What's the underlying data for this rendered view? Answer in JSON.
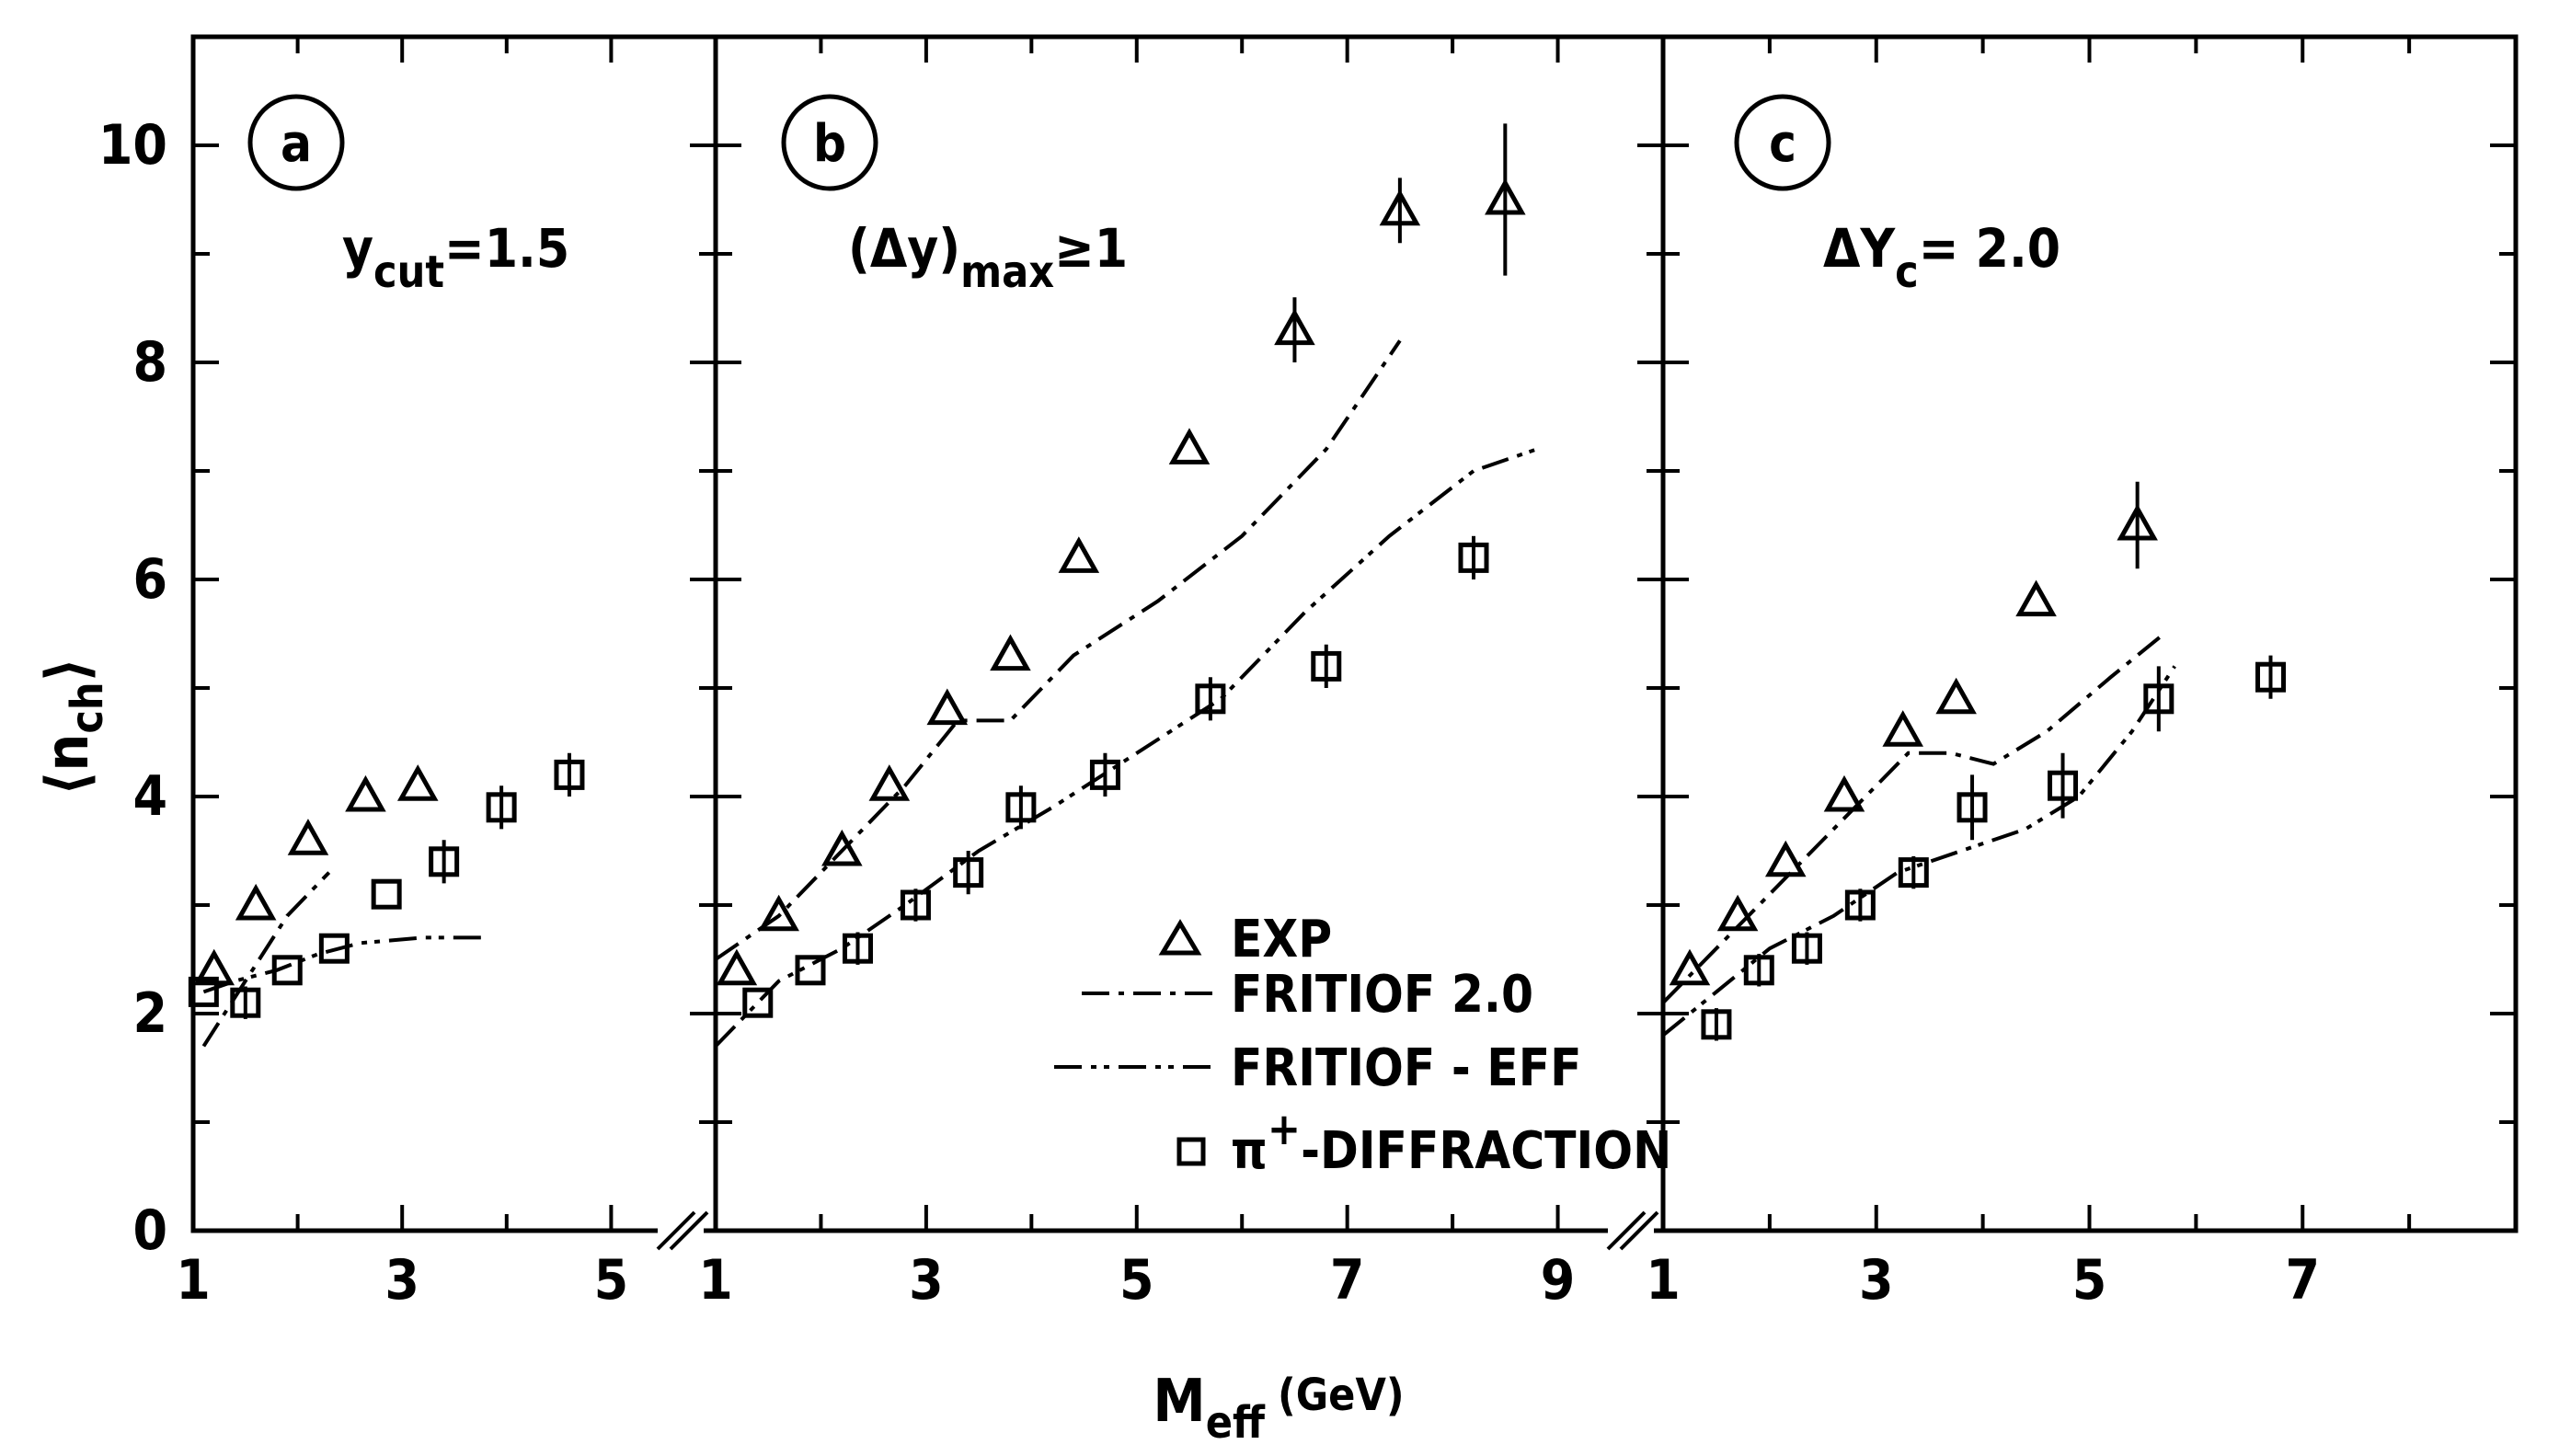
{
  "chart_data": {
    "type": "scatter",
    "ylabel": "⟨n",
    "ylabel_sub": "ch",
    "ylabel_close": "⟩",
    "xlabel": "M",
    "xlabel_sub": "eff",
    "xlabel_unit": "(GeV)",
    "ylim": [
      0,
      11
    ],
    "y_ticks": [
      "0",
      "2",
      "4",
      "6",
      "8",
      "10"
    ],
    "panels": [
      {
        "letter": "a",
        "label": "y",
        "label_sub": "cut",
        "label_tail": "=1.5",
        "xlim": [
          1,
          6
        ],
        "x_ticks": [
          "1",
          "3",
          "5"
        ],
        "exp": {
          "x": [
            1.2,
            1.6,
            2.1,
            2.65,
            3.15
          ],
          "y": [
            2.4,
            3.0,
            3.6,
            4.0,
            4.1
          ],
          "err": [
            0,
            0,
            0,
            0,
            0
          ]
        },
        "diffraction": {
          "x": [
            1.1,
            1.5,
            1.9,
            2.35,
            2.85,
            3.4,
            3.95,
            4.6
          ],
          "y": [
            2.2,
            2.1,
            2.4,
            2.6,
            3.1,
            3.4,
            3.9,
            4.2
          ],
          "err": [
            0,
            0.15,
            0,
            0,
            0,
            0.2,
            0.2,
            0.2
          ]
        },
        "fritiof": {
          "x": [
            1.1,
            1.5,
            1.9,
            2.3
          ],
          "y": [
            1.7,
            2.3,
            2.9,
            3.3
          ]
        },
        "fritiof_eff": {
          "x": [
            1.1,
            1.4,
            1.8,
            2.2,
            2.6,
            3.2,
            3.8
          ],
          "y": [
            2.2,
            2.3,
            2.4,
            2.55,
            2.65,
            2.7,
            2.7
          ]
        }
      },
      {
        "letter": "b",
        "label": "(Δy)",
        "label_sub": "max",
        "label_tail": "≥1",
        "xlim": [
          1,
          10
        ],
        "x_ticks": [
          "1",
          "3",
          "5",
          "7",
          "9"
        ],
        "exp": {
          "x": [
            1.2,
            1.6,
            2.2,
            2.65,
            3.2,
            3.8,
            4.45,
            5.5,
            6.5,
            7.5,
            8.5
          ],
          "y": [
            2.4,
            2.9,
            3.5,
            4.1,
            4.8,
            5.3,
            6.2,
            7.2,
            8.3,
            9.4,
            9.5
          ],
          "err": [
            0,
            0,
            0,
            0,
            0,
            0,
            0,
            0,
            0.3,
            0.3,
            0.7
          ]
        },
        "diffraction": {
          "x": [
            1.4,
            1.9,
            2.35,
            2.9,
            3.4,
            3.9,
            4.7,
            5.7,
            6.8,
            8.2
          ],
          "y": [
            2.1,
            2.4,
            2.6,
            3.0,
            3.3,
            3.9,
            4.2,
            4.9,
            5.2,
            6.2
          ],
          "err": [
            0,
            0,
            0.15,
            0.15,
            0.2,
            0.2,
            0.2,
            0.2,
            0.2,
            0.2
          ]
        },
        "fritiof": {
          "x": [
            1.0,
            1.6,
            2.2,
            2.8,
            3.3,
            3.8,
            4.4,
            5.2,
            6.0,
            6.8,
            7.5
          ],
          "y": [
            2.5,
            2.9,
            3.5,
            4.1,
            4.7,
            4.7,
            5.3,
            5.8,
            6.4,
            7.2,
            8.2
          ]
        },
        "fritiof_eff": {
          "x": [
            1.0,
            1.6,
            2.2,
            2.8,
            3.5,
            4.2,
            5.0,
            5.8,
            6.6,
            7.4,
            8.2,
            8.8
          ],
          "y": [
            1.7,
            2.3,
            2.6,
            3.0,
            3.5,
            3.9,
            4.4,
            4.9,
            5.7,
            6.4,
            7.0,
            7.2
          ]
        }
      },
      {
        "letter": "c",
        "label": "ΔY",
        "label_sub": "c",
        "label_tail": "= 2.0",
        "xlim": [
          1,
          9
        ],
        "x_ticks": [
          "1",
          "3",
          "5",
          "7"
        ],
        "exp": {
          "x": [
            1.25,
            1.7,
            2.15,
            2.7,
            3.25,
            3.75,
            4.5,
            5.45
          ],
          "y": [
            2.4,
            2.9,
            3.4,
            4.0,
            4.6,
            4.9,
            5.8,
            6.5
          ],
          "err": [
            0,
            0,
            0,
            0,
            0,
            0,
            0,
            0.4
          ]
        },
        "diffraction": {
          "x": [
            1.5,
            1.9,
            2.35,
            2.85,
            3.35,
            3.9,
            4.75,
            5.65,
            6.7
          ],
          "y": [
            1.9,
            2.4,
            2.6,
            3.0,
            3.3,
            3.9,
            4.1,
            4.9,
            5.1
          ],
          "err": [
            0.15,
            0.15,
            0.15,
            0.15,
            0.15,
            0.3,
            0.3,
            0.3,
            0.2
          ]
        },
        "fritiof": {
          "x": [
            1.0,
            1.6,
            2.2,
            2.8,
            3.3,
            3.7,
            4.1,
            4.6,
            5.2,
            5.7
          ],
          "y": [
            2.1,
            2.7,
            3.3,
            3.9,
            4.4,
            4.4,
            4.3,
            4.6,
            5.1,
            5.5
          ]
        },
        "fritiof_eff": {
          "x": [
            1.0,
            1.5,
            2.0,
            2.6,
            3.2,
            3.8,
            4.4,
            4.9,
            5.4,
            5.8
          ],
          "y": [
            1.8,
            2.2,
            2.6,
            2.9,
            3.3,
            3.5,
            3.7,
            4.0,
            4.6,
            5.2
          ]
        }
      }
    ],
    "legend": {
      "exp": "EXP",
      "fritiof": "FRITIOF 2.0",
      "fritiof_eff": "FRITIOF - EFF",
      "diffraction_pre": "π",
      "diffraction_sup": "+",
      "diffraction_post": "-DIFFRACTION"
    }
  }
}
